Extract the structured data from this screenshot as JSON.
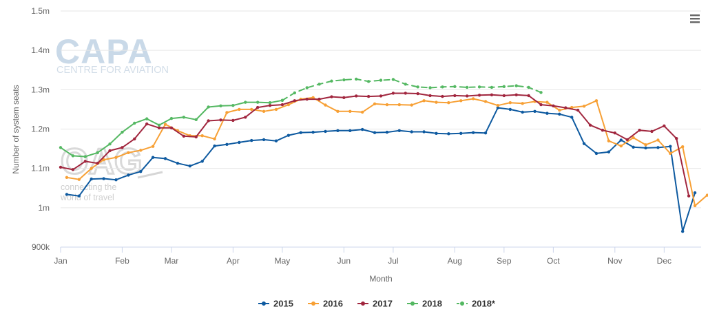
{
  "watermarks": {
    "capa_logo": "CAPA",
    "capa_subtitle": "CENTRE FOR AVIATION",
    "oag_logo": "OAG",
    "oag_tagline_1": "connecting the",
    "oag_tagline_2": "world of travel"
  },
  "menu": {
    "icon": "hamburger-menu-icon"
  },
  "chart_data": {
    "type": "line",
    "xlabel": "Month",
    "ylabel": "Number of system seats",
    "x_unit": "week",
    "x_range": [
      1,
      53
    ],
    "ylim": [
      900000,
      1500000
    ],
    "y_ticks": [
      900000,
      1000000,
      1100000,
      1200000,
      1300000,
      1400000,
      1500000
    ],
    "y_tick_labels": [
      "900k",
      "1m",
      "1.1m",
      "1.2m",
      "1.3m",
      "1.4m",
      "1.5m"
    ],
    "x_ticks": [
      {
        "label": "Jan",
        "week": 1
      },
      {
        "label": "Feb",
        "week": 6
      },
      {
        "label": "Mar",
        "week": 10
      },
      {
        "label": "Apr",
        "week": 15
      },
      {
        "label": "May",
        "week": 19
      },
      {
        "label": "Jun",
        "week": 24
      },
      {
        "label": "Jul",
        "week": 28
      },
      {
        "label": "Aug",
        "week": 33
      },
      {
        "label": "Sep",
        "week": 37
      },
      {
        "label": "Oct",
        "week": 41
      },
      {
        "label": "Nov",
        "week": 46
      },
      {
        "label": "Dec",
        "week": 50
      }
    ],
    "grid": "horizontal",
    "legend": "bottom-center",
    "series": [
      {
        "name": "2015",
        "color": "#0e5aa0",
        "dashed": false,
        "start_week": 1.5,
        "values": [
          1034000,
          1030000,
          1073000,
          1074000,
          1071000,
          1083000,
          1092000,
          1128000,
          1125000,
          1113000,
          1106000,
          1118000,
          1157000,
          1161000,
          1166000,
          1171000,
          1173000,
          1170000,
          1184000,
          1191000,
          1192000,
          1194000,
          1196000,
          1196000,
          1199000,
          1191000,
          1192000,
          1196000,
          1193000,
          1193000,
          1189000,
          1188000,
          1189000,
          1191000,
          1190000,
          1254000,
          1250000,
          1243000,
          1245000,
          1240000,
          1238000,
          1230000,
          1163000,
          1138000,
          1142000,
          1172000,
          1154000,
          1152000,
          1153000,
          1156000,
          940000,
          1038000
        ]
      },
      {
        "name": "2016",
        "color": "#f7a035",
        "dashed": false,
        "start_week": 1.5,
        "values": [
          1077000,
          1072000,
          1100000,
          1122000,
          1128000,
          1140000,
          1146000,
          1156000,
          1212000,
          1196000,
          1183000,
          1183000,
          1175000,
          1242000,
          1250000,
          1250000,
          1245000,
          1250000,
          1262000,
          1276000,
          1280000,
          1261000,
          1245000,
          1245000,
          1243000,
          1264000,
          1262000,
          1262000,
          1261000,
          1272000,
          1268000,
          1267000,
          1272000,
          1277000,
          1270000,
          1260000,
          1267000,
          1265000,
          1270000,
          1268000,
          1248000,
          1255000,
          1258000,
          1272000,
          1170000,
          1157000,
          1178000,
          1160000,
          1172000,
          1138000,
          1155000,
          1005000,
          1032000
        ]
      },
      {
        "name": "2017",
        "color": "#a1263e",
        "dashed": false,
        "start_week": 1,
        "values": [
          1103000,
          1097000,
          1118000,
          1113000,
          1145000,
          1153000,
          1175000,
          1213000,
          1203000,
          1203000,
          1182000,
          1180000,
          1221000,
          1223000,
          1222000,
          1230000,
          1255000,
          1260000,
          1262000,
          1272000,
          1276000,
          1276000,
          1282000,
          1280000,
          1284000,
          1283000,
          1284000,
          1291000,
          1291000,
          1290000,
          1285000,
          1283000,
          1285000,
          1284000,
          1286000,
          1287000,
          1285000,
          1287000,
          1285000,
          1262000,
          1259000,
          1254000,
          1248000,
          1210000,
          1197000,
          1190000,
          1173000,
          1197000,
          1194000,
          1208000,
          1176000,
          1030000
        ]
      },
      {
        "name": "2018",
        "color": "#54b862",
        "dashed": false,
        "start_week": 1,
        "values": [
          1153000,
          1132000,
          1130000,
          1140000,
          1162000,
          1192000,
          1215000,
          1226000,
          1210000,
          1227000,
          1230000,
          1224000,
          1256000,
          1259000,
          1260000,
          1268000,
          1268000,
          1267000,
          1273000
        ]
      },
      {
        "name": "2018*",
        "color": "#54b862",
        "dashed": true,
        "start_week": 19,
        "values": [
          1273000,
          1292000,
          1305000,
          1314000,
          1322000,
          1325000,
          1327000,
          1321000,
          1324000,
          1326000,
          1314000,
          1307000,
          1305000,
          1307000,
          1308000,
          1306000,
          1307000,
          1306000,
          1308000,
          1310000,
          1306000,
          1293000
        ]
      }
    ]
  }
}
